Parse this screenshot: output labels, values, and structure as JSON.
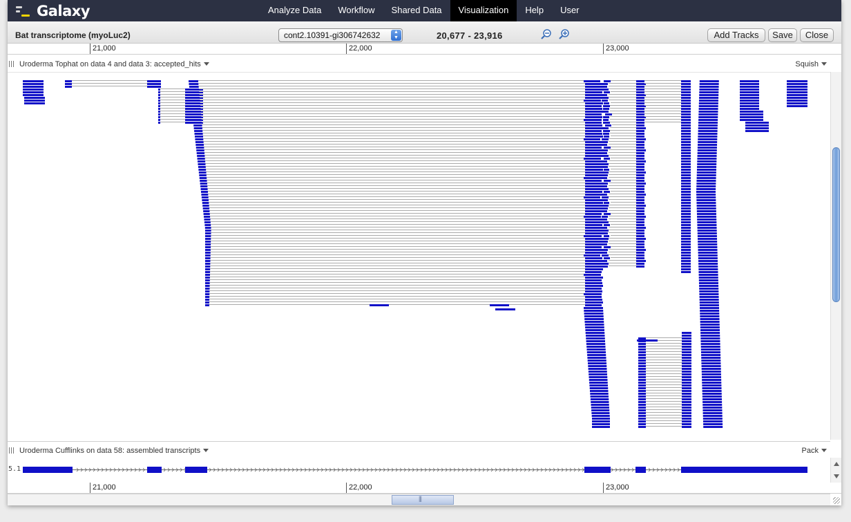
{
  "app": {
    "name": "Galaxy"
  },
  "nav": [
    "Analyze Data",
    "Workflow",
    "Shared Data",
    "Visualization",
    "Help",
    "User"
  ],
  "active_nav": "Visualization",
  "toolbar": {
    "title": "Bat transcriptome (myoLuc2)",
    "chrom": "cont2.10391-gi306742632",
    "location": "20,677 - 23,916",
    "add_tracks": "Add Tracks",
    "save": "Save",
    "close": "Close"
  },
  "ruler": {
    "ticks": [
      "21,000",
      "22,000",
      "23,000"
    ]
  },
  "tracks": [
    {
      "name": "Uroderma Tophat on data 4 and data 3: accepted_hits",
      "mode": "Squish"
    },
    {
      "name": "Uroderma Cufflinks on data 58: assembled transcripts",
      "mode": "Pack",
      "feature_label": "5.1"
    }
  ],
  "colors": {
    "feature": "#1010c8",
    "intron": "#aaaaaa",
    "masthead": "#2c3143"
  }
}
